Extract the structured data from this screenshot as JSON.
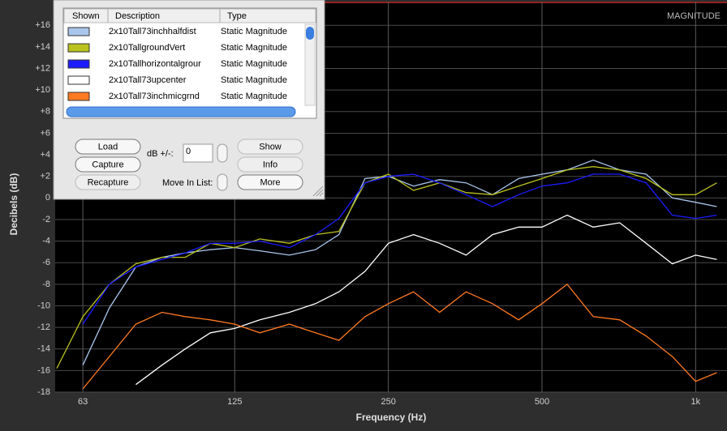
{
  "chart_data": {
    "type": "line",
    "corner_label": "MAGNITUDE",
    "xlabel": "Frequency (Hz)",
    "ylabel": "Decibels (dB)",
    "xscale": "log",
    "grid": true,
    "xlim": [
      55.6,
      1152
    ],
    "ylim": [
      -18,
      18.2
    ],
    "xticks": [
      63,
      125,
      250,
      500,
      {
        "value": 1000,
        "label": "1k"
      }
    ],
    "yticks": [
      -18,
      -16,
      -14,
      -12,
      -10,
      -8,
      -6,
      -4,
      -2,
      0,
      {
        "value": 2,
        "label": "+2"
      },
      {
        "value": 4,
        "label": "+4"
      },
      {
        "value": 6,
        "label": "+6"
      },
      {
        "value": 8,
        "label": "+8"
      },
      {
        "value": 10,
        "label": "+10"
      },
      {
        "value": 12,
        "label": "+12"
      },
      {
        "value": 14,
        "label": "+14"
      },
      {
        "value": 16,
        "label": "+16"
      }
    ],
    "x": [
      56,
      63,
      71,
      80,
      90,
      100,
      112,
      125,
      140,
      160,
      180,
      200,
      225,
      250,
      280,
      315,
      355,
      400,
      450,
      500,
      560,
      630,
      710,
      800,
      900,
      1000,
      1100
    ],
    "series": [
      {
        "name": "2x10Tall73inchhalfdist",
        "color": "#a9c6ec",
        "values": [
          null,
          -15.5,
          -10.2,
          -6.4,
          -5.5,
          -5.1,
          -4.8,
          -4.6,
          -4.9,
          -5.3,
          -4.8,
          -3.4,
          1.8,
          2,
          1.1,
          1.7,
          1.4,
          0.3,
          1.8,
          2.2,
          2.6,
          3.5,
          2.6,
          2.2,
          0,
          -0.4,
          -0.8
        ]
      },
      {
        "name": "2x10TallgroundVert",
        "color": "#b9c21e",
        "values": [
          -15.8,
          -11,
          -8,
          -6.1,
          -5.5,
          -5.5,
          -4.2,
          -4.6,
          -3.8,
          -4.2,
          -3.4,
          -3.1,
          1.4,
          2.2,
          0.7,
          1.4,
          0.5,
          0.3,
          1.1,
          1.8,
          2.6,
          2.9,
          2.6,
          1.8,
          0.3,
          0.3,
          1.4
        ]
      },
      {
        "name": "2x10Tallhorizontalgrour",
        "color": "#1c1cff",
        "values": [
          null,
          -11.7,
          -8,
          -6.4,
          -5.7,
          -5.1,
          -4.2,
          -4.2,
          -4,
          -4.6,
          -3.4,
          -1.9,
          1.4,
          2,
          2.2,
          1.4,
          0.3,
          -0.8,
          0.3,
          1.1,
          1.4,
          2.2,
          2.2,
          1.4,
          -1.6,
          -1.9,
          -1.6
        ]
      },
      {
        "name": "2x10Tall73upcenter",
        "color": "#ffffff",
        "values": [
          null,
          null,
          null,
          -17.3,
          -15.5,
          -14,
          -12.5,
          -12.1,
          -11.3,
          -10.6,
          -9.8,
          -8.7,
          -6.8,
          -4.2,
          -3.4,
          -4.2,
          -5.3,
          -3.4,
          -2.7,
          -2.7,
          -1.6,
          -2.7,
          -2.3,
          -4.2,
          -6.1,
          -5.3,
          -5.7
        ]
      },
      {
        "name": "2x10Tall73inchmicgrnd",
        "color": "#ff7a22",
        "values": [
          null,
          -17.7,
          -14.7,
          -11.7,
          -10.6,
          -11,
          -11.3,
          -11.7,
          -12.5,
          -11.7,
          -12.5,
          -13.2,
          -11,
          -9.8,
          -8.7,
          -10.6,
          -8.7,
          -9.8,
          -11.3,
          -9.8,
          -8,
          -11,
          -11.3,
          -12.8,
          -14.7,
          -17,
          -16.2
        ]
      }
    ]
  },
  "panel": {
    "columns": [
      "Shown",
      "Description",
      "Type"
    ],
    "types": [
      "Static Magnitude",
      "Static Magnitude",
      "Static Magnitude",
      "Static Magnitude",
      "Static Magnitude"
    ],
    "buttons_left": [
      "Load",
      "Capture",
      "Recapture"
    ],
    "buttons_right": [
      "Show",
      "Info",
      "More"
    ],
    "db_label": "dB +/-:",
    "db_value": "0",
    "move_label": "Move In List:"
  }
}
